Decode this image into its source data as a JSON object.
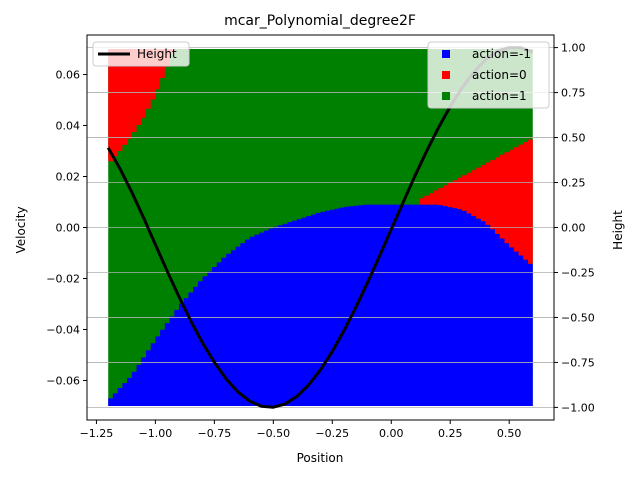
{
  "chart_data": {
    "type": "heatmap",
    "title": "mcar_Polynomial_degree2F",
    "xlabel": "Position",
    "ylabel": "Velocity",
    "y2label": "Height",
    "xlim": [
      -1.29,
      0.69
    ],
    "ylim": [
      -0.0755,
      0.0755
    ],
    "y2lim": [
      -1.07,
      1.07
    ],
    "xticks": [
      -1.25,
      -1.0,
      -0.75,
      -0.5,
      -0.25,
      0.0,
      0.25,
      0.5
    ],
    "xtick_labels": [
      "−1.25",
      "−1.00",
      "−0.75",
      "−0.50",
      "−0.25",
      "0.00",
      "0.25",
      "0.50"
    ],
    "yticks": [
      -0.06,
      -0.04,
      -0.02,
      0.0,
      0.02,
      0.04,
      0.06
    ],
    "ytick_labels": [
      "−0.06",
      "−0.04",
      "−0.02",
      "0.00",
      "0.02",
      "0.04",
      "0.06"
    ],
    "y2ticks": [
      -1.0,
      -0.75,
      -0.5,
      -0.25,
      0.0,
      0.25,
      0.5,
      0.75,
      1.0
    ],
    "y2tick_labels": [
      "−1.00",
      "−0.75",
      "−0.50",
      "−0.25",
      "0.00",
      "0.25",
      "0.50",
      "0.75",
      "1.00"
    ],
    "grid": "horizontal lines on right axis ticks",
    "domain": {
      "x": [
        -1.2,
        0.6
      ],
      "y": [
        -0.07,
        0.07
      ]
    },
    "policy_regions": {
      "blue_upper_boundary": {
        "x": [
          -1.2,
          -1.1,
          -1.0,
          -0.9,
          -0.8,
          -0.7,
          -0.6,
          -0.5,
          -0.4,
          -0.3,
          -0.2,
          -0.1,
          0.0,
          0.1,
          0.2,
          0.3,
          0.4,
          0.5,
          0.6
        ],
        "y": [
          -0.068,
          -0.058,
          -0.044,
          -0.031,
          -0.02,
          -0.011,
          -0.004,
          0.0,
          0.003,
          0.006,
          0.008,
          0.009,
          0.009,
          0.009,
          0.009,
          0.007,
          0.002,
          -0.007,
          -0.015
        ]
      },
      "red_top_left_boundary": {
        "x": [
          -1.2,
          -1.15,
          -1.1,
          -1.05,
          -1.0,
          -0.95,
          -0.92
        ],
        "y": [
          0.025,
          0.03,
          0.036,
          0.043,
          0.052,
          0.063,
          0.071
        ]
      },
      "red_right_boundary": {
        "x": [
          0.12,
          0.2,
          0.3,
          0.4,
          0.5,
          0.6
        ],
        "y": [
          0.011,
          0.015,
          0.02,
          0.025,
          0.03,
          0.035
        ]
      }
    },
    "height_curve": {
      "x": [
        -1.2,
        -1.15,
        -1.1,
        -1.05,
        -1.0,
        -0.95,
        -0.9,
        -0.85,
        -0.8,
        -0.75,
        -0.7,
        -0.65,
        -0.6,
        -0.55,
        -0.5,
        -0.45,
        -0.4,
        -0.35,
        -0.3,
        -0.25,
        -0.2,
        -0.15,
        -0.1,
        -0.05,
        0.0,
        0.05,
        0.1,
        0.15,
        0.2,
        0.25,
        0.3,
        0.35,
        0.4,
        0.45,
        0.5,
        0.55,
        0.6
      ],
      "y": [
        0.443,
        0.327,
        0.196,
        0.054,
        -0.095,
        -0.243,
        -0.385,
        -0.519,
        -0.642,
        -0.75,
        -0.842,
        -0.914,
        -0.965,
        -0.994,
        -0.999,
        -0.981,
        -0.939,
        -0.875,
        -0.791,
        -0.689,
        -0.572,
        -0.443,
        -0.304,
        -0.159,
        -0.01,
        0.139,
        0.285,
        0.424,
        0.554,
        0.672,
        0.776,
        0.864,
        0.933,
        0.981,
        1.0,
        0.999,
        0.974
      ]
    },
    "colors": {
      "action_minus1": "#0000ff",
      "action_0": "#ff0000",
      "action_1": "#008000",
      "height": "#000000"
    },
    "legend_left": {
      "placement": "top-left",
      "entries": [
        {
          "label": "Height",
          "color": "#000000"
        }
      ]
    },
    "legend_right": {
      "placement": "top-right",
      "entries": [
        {
          "label": "action=-1",
          "color": "#0000ff"
        },
        {
          "label": "action=0",
          "color": "#ff0000"
        },
        {
          "label": "action=1",
          "color": "#008000"
        }
      ]
    }
  }
}
